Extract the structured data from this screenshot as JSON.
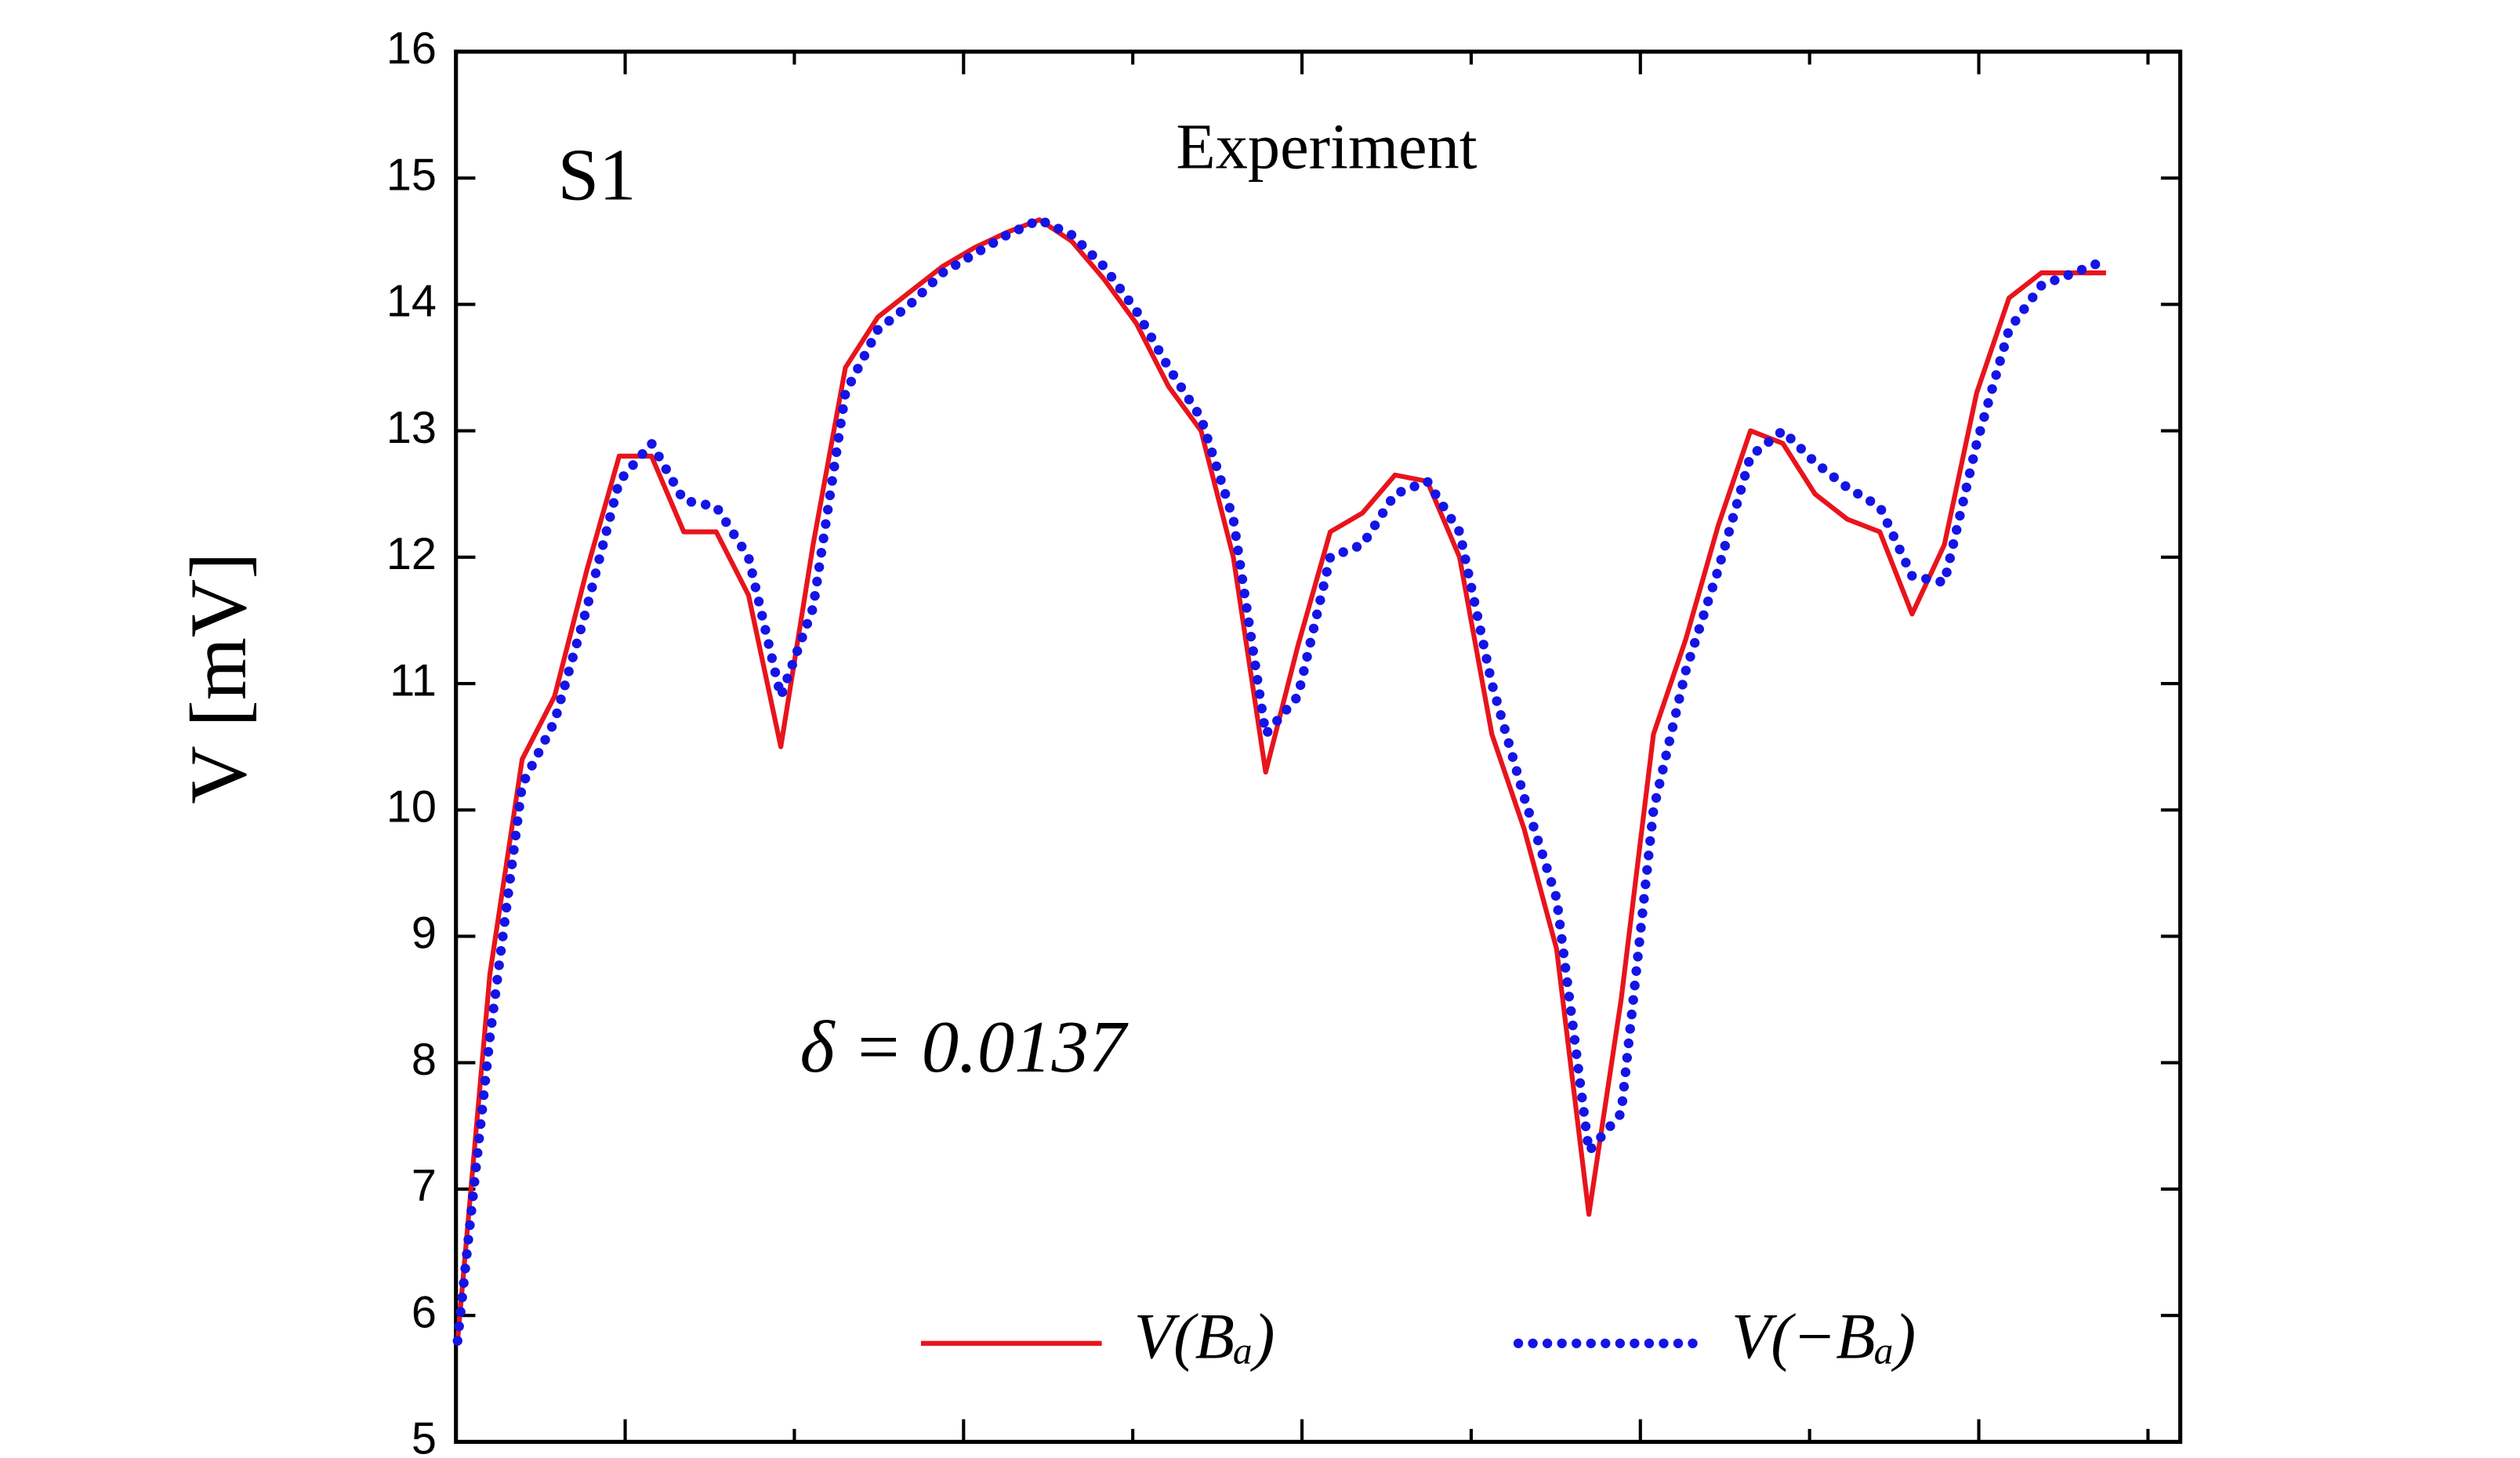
{
  "chart_data": {
    "type": "line",
    "title": "S1",
    "subtitle": "Experiment",
    "annotation": "δ = 0.0137",
    "y_label": "V [mV]",
    "ylim": [
      5,
      16
    ],
    "yticks": [
      5,
      6,
      7,
      8,
      9,
      10,
      11,
      12,
      13,
      14,
      15,
      16
    ],
    "legend": "lower center",
    "series": [
      {
        "name": "V(Bₐ)",
        "color": "#e8141c",
        "style": "solid",
        "values": [
          5.8,
          8.7,
          10.4,
          10.9,
          11.9,
          12.8,
          12.8,
          12.2,
          12.2,
          11.7,
          10.5,
          12.1,
          13.5,
          13.9,
          14.1,
          14.3,
          14.45,
          14.57,
          14.67,
          14.5,
          14.2,
          13.85,
          13.35,
          13.0,
          12.0,
          10.3,
          11.3,
          12.2,
          12.35,
          12.65,
          12.6,
          12.0,
          10.6,
          9.85,
          8.9,
          6.8,
          8.5,
          10.6,
          11.35,
          12.25,
          13.0,
          12.9,
          12.5,
          12.3,
          12.2,
          11.55,
          12.1,
          13.3,
          14.05,
          14.25,
          14.25,
          14.25
        ]
      },
      {
        "name": "V(−Bₐ)",
        "color": "#1414e6",
        "style": "dotted",
        "values": [
          5.8,
          8.2,
          10.2,
          10.7,
          11.6,
          12.6,
          12.9,
          12.45,
          12.4,
          12.0,
          10.9,
          11.6,
          13.3,
          13.8,
          14.0,
          14.25,
          14.4,
          14.55,
          14.67,
          14.55,
          14.3,
          13.95,
          13.5,
          13.1,
          12.3,
          10.6,
          10.9,
          12.0,
          12.1,
          12.5,
          12.6,
          12.2,
          11.0,
          10.1,
          9.3,
          7.3,
          7.6,
          10.0,
          11.1,
          11.9,
          12.8,
          13.0,
          12.75,
          12.55,
          12.4,
          11.85,
          11.8,
          12.9,
          13.8,
          14.15,
          14.25,
          14.35
        ]
      }
    ]
  }
}
